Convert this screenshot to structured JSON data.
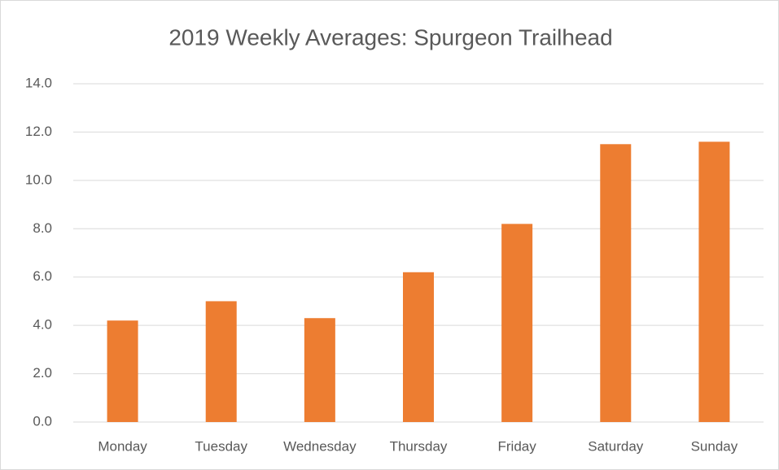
{
  "chart_data": {
    "type": "bar",
    "title": "2019 Weekly Averages: Spurgeon Trailhead",
    "categories": [
      "Monday",
      "Tuesday",
      "Wednesday",
      "Thursday",
      "Friday",
      "Saturday",
      "Sunday"
    ],
    "values": [
      4.2,
      5.0,
      4.3,
      6.2,
      8.2,
      11.5,
      11.6
    ],
    "color": "#ed7d31",
    "ylim": [
      0,
      14
    ],
    "yticks": [
      {
        "value": 0,
        "label": "0.0"
      },
      {
        "value": 2,
        "label": "2.0"
      },
      {
        "value": 4,
        "label": "4.0"
      },
      {
        "value": 6,
        "label": "6.0"
      },
      {
        "value": 8,
        "label": "8.0"
      },
      {
        "value": 10,
        "label": "10.0"
      },
      {
        "value": 12,
        "label": "12.0"
      },
      {
        "value": 14,
        "label": "14.0"
      }
    ],
    "grid": true
  }
}
